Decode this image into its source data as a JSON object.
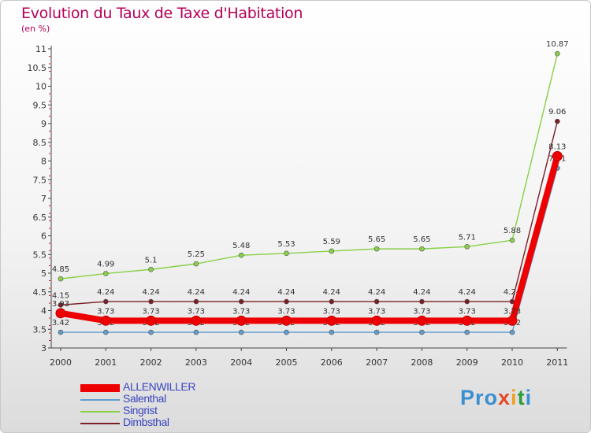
{
  "title": "Evolution du Taux de Taxe d'Habitation",
  "unit": "(en %)",
  "logo": {
    "p1": "Pro",
    "p2": "x",
    "p3": "i",
    "p4": "t",
    "p5": "i"
  },
  "chart_data": {
    "type": "line",
    "title": "Evolution du Taux de Taxe d'Habitation",
    "ylabel": "(en %)",
    "x": [
      "2000",
      "2001",
      "2002",
      "2003",
      "2004",
      "2005",
      "2006",
      "2007",
      "2008",
      "2009",
      "2010",
      "2011"
    ],
    "yticks": [
      "3",
      "3.5",
      "4",
      "4.5",
      "5",
      "5.5",
      "6",
      "6.5",
      "7",
      "7.5",
      "8",
      "8.5",
      "9",
      "9.5",
      "10",
      "10.5",
      "11"
    ],
    "ylim": [
      3,
      11
    ],
    "grid": false,
    "legend": "bottom-left",
    "series": [
      {
        "name": "ALLENWILLER",
        "color": "#ee0000",
        "values": [
          3.93,
          3.73,
          3.73,
          3.73,
          3.73,
          3.73,
          3.73,
          3.73,
          3.73,
          3.73,
          3.73,
          8.13
        ],
        "labels": [
          "3.93",
          "3.73",
          "3.73",
          "3.73",
          "3.73",
          "3.73",
          "3.73",
          "3.73",
          "3.73",
          "3.73",
          "3.73",
          "8.13"
        ]
      },
      {
        "name": "Salenthal",
        "color": "#5f9ccf",
        "values": [
          3.42,
          3.42,
          3.42,
          3.42,
          3.42,
          3.42,
          3.42,
          3.42,
          3.42,
          3.42,
          3.42,
          7.81
        ],
        "labels": [
          "3.42",
          "3.42",
          "3.42",
          "3.42",
          "3.42",
          "3.42",
          "3.42",
          "3.42",
          "3.42",
          "3.42",
          "3.42",
          "7.81"
        ]
      },
      {
        "name": "Singrist",
        "color": "#88d047",
        "values": [
          4.85,
          4.99,
          5.1,
          5.25,
          5.48,
          5.53,
          5.59,
          5.65,
          5.65,
          5.71,
          5.88,
          10.87
        ],
        "labels": [
          "4.85",
          "4.99",
          "5.1",
          "5.25",
          "5.48",
          "5.53",
          "5.59",
          "5.65",
          "5.65",
          "5.71",
          "5.88",
          "10.87"
        ]
      },
      {
        "name": "Dimbsthal",
        "color": "#7a1f27",
        "values": [
          4.15,
          4.24,
          4.24,
          4.24,
          4.24,
          4.24,
          4.24,
          4.24,
          4.24,
          4.24,
          4.24,
          9.06
        ],
        "labels": [
          "4.15",
          "4.24",
          "4.24",
          "4.24",
          "4.24",
          "4.24",
          "4.24",
          "4.24",
          "4.24",
          "4.24",
          "4.24",
          "9.06"
        ]
      }
    ]
  }
}
